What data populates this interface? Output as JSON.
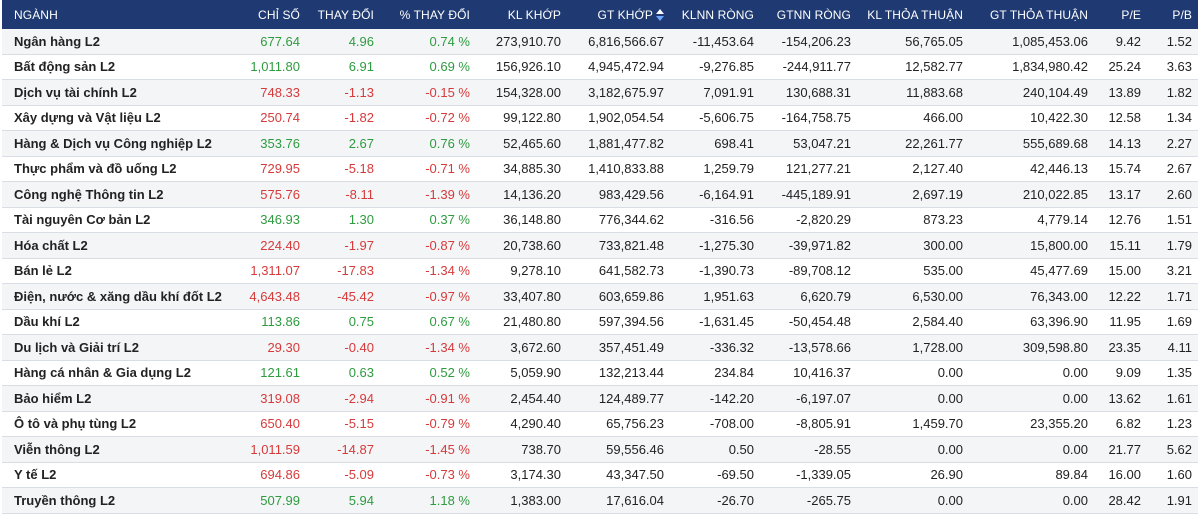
{
  "header": {
    "nganh": "NGÀNH",
    "chi_so": "CHỈ SỐ",
    "thay_doi": "THAY ĐỔI",
    "pct_thay_doi": "% THAY ĐỔI",
    "kl_khop": "KL KHỚP",
    "gt_khop": "GT KHỚP",
    "klnn_rong": "KLNN RÒNG",
    "gtnn_rong": "GTNN RÒNG",
    "kl_thoa_thuan": "KL THỎA THUẬN",
    "gt_thoa_thuan": "GT THỎA THUẬN",
    "pe": "P/E",
    "pb": "P/B"
  },
  "sort": {
    "column": "gt_khop",
    "icon": "sort-desc-icon"
  },
  "colors": {
    "header_bg": "#1f3a72",
    "up": "#2e9b3f",
    "down": "#d63a3a"
  },
  "rows": [
    {
      "name": "Ngân hàng L2",
      "index": "677.64",
      "change": "4.96",
      "pct": "0.74 %",
      "dir": "up",
      "kl_khop": "273,910.70",
      "gt_khop": "6,816,566.67",
      "klnn": "-11,453.64",
      "gtnn": "-154,206.23",
      "kl_tt": "56,765.05",
      "gt_tt": "1,085,453.06",
      "pe": "9.42",
      "pb": "1.52"
    },
    {
      "name": "Bất động sản L2",
      "index": "1,011.80",
      "change": "6.91",
      "pct": "0.69 %",
      "dir": "up",
      "kl_khop": "156,926.10",
      "gt_khop": "4,945,472.94",
      "klnn": "-9,276.85",
      "gtnn": "-244,911.77",
      "kl_tt": "12,582.77",
      "gt_tt": "1,834,980.42",
      "pe": "25.24",
      "pb": "3.63"
    },
    {
      "name": "Dịch vụ tài chính L2",
      "index": "748.33",
      "change": "-1.13",
      "pct": "-0.15 %",
      "dir": "down",
      "kl_khop": "154,328.00",
      "gt_khop": "3,182,675.97",
      "klnn": "7,091.91",
      "gtnn": "130,688.31",
      "kl_tt": "11,883.68",
      "gt_tt": "240,104.49",
      "pe": "13.89",
      "pb": "1.82"
    },
    {
      "name": "Xây dựng và Vật liệu L2",
      "index": "250.74",
      "change": "-1.82",
      "pct": "-0.72 %",
      "dir": "down",
      "kl_khop": "99,122.80",
      "gt_khop": "1,902,054.54",
      "klnn": "-5,606.75",
      "gtnn": "-164,758.75",
      "kl_tt": "466.00",
      "gt_tt": "10,422.30",
      "pe": "12.58",
      "pb": "1.34"
    },
    {
      "name": "Hàng & Dịch vụ Công nghiệp L2",
      "index": "353.76",
      "change": "2.67",
      "pct": "0.76 %",
      "dir": "up",
      "kl_khop": "52,465.60",
      "gt_khop": "1,881,477.82",
      "klnn": "698.41",
      "gtnn": "53,047.21",
      "kl_tt": "22,261.77",
      "gt_tt": "555,689.68",
      "pe": "14.13",
      "pb": "2.27"
    },
    {
      "name": "Thực phẩm và đồ uống L2",
      "index": "729.95",
      "change": "-5.18",
      "pct": "-0.71 %",
      "dir": "down",
      "kl_khop": "34,885.30",
      "gt_khop": "1,410,833.88",
      "klnn": "1,259.79",
      "gtnn": "121,277.21",
      "kl_tt": "2,127.40",
      "gt_tt": "42,446.13",
      "pe": "15.74",
      "pb": "2.67"
    },
    {
      "name": "Công nghệ Thông tin L2",
      "index": "575.76",
      "change": "-8.11",
      "pct": "-1.39 %",
      "dir": "down",
      "kl_khop": "14,136.20",
      "gt_khop": "983,429.56",
      "klnn": "-6,164.91",
      "gtnn": "-445,189.91",
      "kl_tt": "2,697.19",
      "gt_tt": "210,022.85",
      "pe": "13.17",
      "pb": "2.60"
    },
    {
      "name": "Tài nguyên Cơ bản L2",
      "index": "346.93",
      "change": "1.30",
      "pct": "0.37 %",
      "dir": "up",
      "kl_khop": "36,148.80",
      "gt_khop": "776,344.62",
      "klnn": "-316.56",
      "gtnn": "-2,820.29",
      "kl_tt": "873.23",
      "gt_tt": "4,779.14",
      "pe": "12.76",
      "pb": "1.51"
    },
    {
      "name": "Hóa chất L2",
      "index": "224.40",
      "change": "-1.97",
      "pct": "-0.87 %",
      "dir": "down",
      "kl_khop": "20,738.60",
      "gt_khop": "733,821.48",
      "klnn": "-1,275.30",
      "gtnn": "-39,971.82",
      "kl_tt": "300.00",
      "gt_tt": "15,800.00",
      "pe": "15.11",
      "pb": "1.79"
    },
    {
      "name": "Bán lẻ L2",
      "index": "1,311.07",
      "change": "-17.83",
      "pct": "-1.34 %",
      "dir": "down",
      "kl_khop": "9,278.10",
      "gt_khop": "641,582.73",
      "klnn": "-1,390.73",
      "gtnn": "-89,708.12",
      "kl_tt": "535.00",
      "gt_tt": "45,477.69",
      "pe": "15.00",
      "pb": "3.21"
    },
    {
      "name": "Điện, nước & xăng dầu khí đốt L2",
      "index": "4,643.48",
      "change": "-45.42",
      "pct": "-0.97 %",
      "dir": "down",
      "kl_khop": "33,407.80",
      "gt_khop": "603,659.86",
      "klnn": "1,951.63",
      "gtnn": "6,620.79",
      "kl_tt": "6,530.00",
      "gt_tt": "76,343.00",
      "pe": "12.22",
      "pb": "1.71"
    },
    {
      "name": "Dầu khí L2",
      "index": "113.86",
      "change": "0.75",
      "pct": "0.67 %",
      "dir": "up",
      "kl_khop": "21,480.80",
      "gt_khop": "597,394.56",
      "klnn": "-1,631.45",
      "gtnn": "-50,454.48",
      "kl_tt": "2,584.40",
      "gt_tt": "63,396.90",
      "pe": "11.95",
      "pb": "1.69"
    },
    {
      "name": "Du lịch và Giải trí L2",
      "index": "29.30",
      "change": "-0.40",
      "pct": "-1.34 %",
      "dir": "down",
      "kl_khop": "3,672.60",
      "gt_khop": "357,451.49",
      "klnn": "-336.32",
      "gtnn": "-13,578.66",
      "kl_tt": "1,728.00",
      "gt_tt": "309,598.80",
      "pe": "23.35",
      "pb": "4.11"
    },
    {
      "name": "Hàng cá nhân & Gia dụng L2",
      "index": "121.61",
      "change": "0.63",
      "pct": "0.52 %",
      "dir": "up",
      "kl_khop": "5,059.90",
      "gt_khop": "132,213.44",
      "klnn": "234.84",
      "gtnn": "10,416.37",
      "kl_tt": "0.00",
      "gt_tt": "0.00",
      "pe": "9.09",
      "pb": "1.35"
    },
    {
      "name": "Bảo hiểm L2",
      "index": "319.08",
      "change": "-2.94",
      "pct": "-0.91 %",
      "dir": "down",
      "kl_khop": "2,454.40",
      "gt_khop": "124,489.77",
      "klnn": "-142.20",
      "gtnn": "-6,197.07",
      "kl_tt": "0.00",
      "gt_tt": "0.00",
      "pe": "13.62",
      "pb": "1.61"
    },
    {
      "name": "Ô tô và phụ tùng L2",
      "index": "650.40",
      "change": "-5.15",
      "pct": "-0.79 %",
      "dir": "down",
      "kl_khop": "4,290.40",
      "gt_khop": "65,756.23",
      "klnn": "-708.00",
      "gtnn": "-8,805.91",
      "kl_tt": "1,459.70",
      "gt_tt": "23,355.20",
      "pe": "6.82",
      "pb": "1.23"
    },
    {
      "name": "Viễn thông L2",
      "index": "1,011.59",
      "change": "-14.87",
      "pct": "-1.45 %",
      "dir": "down",
      "kl_khop": "738.70",
      "gt_khop": "59,556.46",
      "klnn": "0.50",
      "gtnn": "-28.55",
      "kl_tt": "0.00",
      "gt_tt": "0.00",
      "pe": "21.77",
      "pb": "5.62"
    },
    {
      "name": "Y tế L2",
      "index": "694.86",
      "change": "-5.09",
      "pct": "-0.73 %",
      "dir": "down",
      "kl_khop": "3,174.30",
      "gt_khop": "43,347.50",
      "klnn": "-69.50",
      "gtnn": "-1,339.05",
      "kl_tt": "26.90",
      "gt_tt": "89.84",
      "pe": "16.00",
      "pb": "1.60"
    },
    {
      "name": "Truyền thông L2",
      "index": "507.99",
      "change": "5.94",
      "pct": "1.18 %",
      "dir": "up",
      "kl_khop": "1,383.00",
      "gt_khop": "17,616.04",
      "klnn": "-26.70",
      "gtnn": "-265.75",
      "kl_tt": "0.00",
      "gt_tt": "0.00",
      "pe": "28.42",
      "pb": "1.91"
    }
  ]
}
